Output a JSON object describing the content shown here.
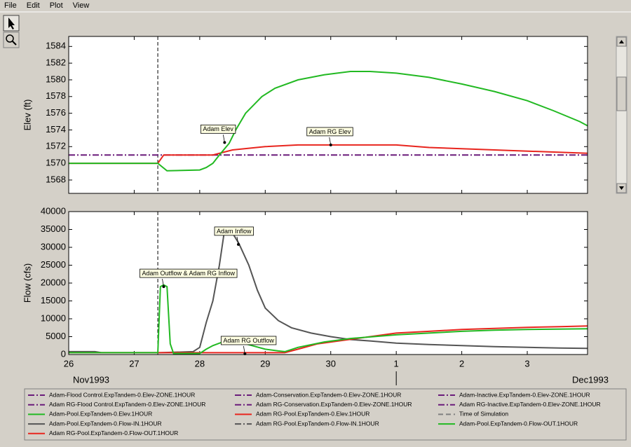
{
  "menu": [
    "File",
    "Edit",
    "Plot",
    "View"
  ],
  "chart_data": [
    {
      "type": "line",
      "ylabel": "Elev (ft)",
      "xlim": [
        0,
        7.92
      ],
      "ylim": [
        1566.4,
        1585.2
      ],
      "yticks": [
        1568,
        1570,
        1572,
        1574,
        1576,
        1578,
        1580,
        1582,
        1584
      ],
      "time_of_simulation": 1.36,
      "series": [
        {
          "color": "#6a1b7a",
          "style": "dashdot",
          "x": [
            0,
            7.92
          ],
          "values": [
            1571,
            1571
          ]
        },
        {
          "color": "#e8251e",
          "style": "solid",
          "x": [
            0,
            1.36,
            1.45,
            2.2,
            2.5,
            3.0,
            3.5,
            5.0,
            5.5,
            6.5,
            7.92
          ],
          "values": [
            1570,
            1570,
            1571,
            1571,
            1571.6,
            1572,
            1572.2,
            1572.2,
            1571.9,
            1571.6,
            1571.2
          ]
        },
        {
          "color": "#22b922",
          "style": "solid",
          "x": [
            0,
            1.36,
            1.5,
            2.0,
            2.1,
            2.2,
            2.3,
            2.45,
            2.55,
            2.7,
            2.95,
            3.15,
            3.5,
            3.9,
            4.3,
            4.6,
            5.0,
            5.5,
            6.0,
            6.5,
            7.0,
            7.4,
            7.8,
            7.92
          ],
          "values": [
            1570,
            1570,
            1569.1,
            1569.2,
            1569.5,
            1570,
            1571,
            1572.4,
            1574,
            1576,
            1578,
            1579,
            1580,
            1580.6,
            1581,
            1581,
            1580.8,
            1580.3,
            1579.5,
            1578.6,
            1577.5,
            1576.3,
            1575,
            1574.5
          ]
        }
      ],
      "annotations": [
        {
          "text": "Adam Elev",
          "x": 2.38,
          "y": 1572.5
        },
        {
          "text": "Adam RG Elev",
          "x": 4.0,
          "y": 1572.2
        }
      ]
    },
    {
      "type": "line",
      "ylabel": "Flow (cfs)",
      "xlim": [
        0,
        7.92
      ],
      "ylim": [
        0,
        40000
      ],
      "yticks": [
        0,
        5000,
        10000,
        15000,
        20000,
        25000,
        30000,
        35000,
        40000
      ],
      "xticks": [
        {
          "value": 0,
          "label": "26"
        },
        {
          "value": 1,
          "label": "27"
        },
        {
          "value": 2,
          "label": "28"
        },
        {
          "value": 3,
          "label": "29"
        },
        {
          "value": 4,
          "label": "30"
        },
        {
          "value": 5,
          "label": "1"
        },
        {
          "value": 6,
          "label": "2"
        },
        {
          "value": 7,
          "label": "3"
        }
      ],
      "month_labels": [
        "Nov1993",
        "Dec1993"
      ],
      "time_of_simulation": 1.36,
      "series": [
        {
          "color": "#555555",
          "style": "solid",
          "x": [
            0,
            0.4,
            0.5,
            1.4,
            1.9,
            2.0,
            2.1,
            2.2,
            2.3,
            2.38,
            2.42,
            2.5,
            2.6,
            2.75,
            2.88,
            3.0,
            3.2,
            3.4,
            3.7,
            4.0,
            4.3,
            4.6,
            5.0,
            5.5,
            6.0,
            6.5,
            7.0,
            7.5,
            7.92
          ],
          "values": [
            800,
            800,
            500,
            500,
            800,
            2000,
            9000,
            15000,
            25000,
            35000,
            35500,
            34000,
            31000,
            25000,
            18000,
            13000,
            9500,
            7500,
            6000,
            5000,
            4200,
            3800,
            3200,
            2800,
            2500,
            2200,
            2000,
            1800,
            1700
          ]
        },
        {
          "color": "#e8251e",
          "style": "solid",
          "x": [
            0,
            3.3,
            3.5,
            3.8,
            4.2,
            4.6,
            5.0,
            5.5,
            6.0,
            6.5,
            7.0,
            7.5,
            7.92
          ],
          "values": [
            500,
            500,
            1500,
            3000,
            4000,
            5000,
            6000,
            6500,
            7000,
            7300,
            7600,
            7800,
            8000
          ]
        },
        {
          "color": "#22b922",
          "style": "solid",
          "x": [
            0,
            1.36,
            1.4,
            1.45,
            1.5,
            1.55,
            1.6,
            2.0,
            2.1,
            2.2,
            2.35,
            2.45,
            2.6,
            2.8,
            3.0,
            3.2,
            3.3,
            3.5,
            3.9,
            4.3,
            5.0,
            5.5,
            6.0,
            6.5,
            7.0,
            7.92
          ],
          "values": [
            500,
            500,
            19000,
            19500,
            19000,
            3000,
            300,
            300,
            1500,
            2500,
            3500,
            3800,
            3500,
            2500,
            1500,
            1000,
            800,
            2000,
            3500,
            4500,
            5500,
            6000,
            6500,
            6800,
            7000,
            7200
          ]
        }
      ],
      "annotations": [
        {
          "text": "Adam Inflow",
          "x": 2.59,
          "y": 30800
        },
        {
          "text": "Adam Outflow & Adam RG Inflow",
          "x": 1.45,
          "y": 19000
        },
        {
          "text": "Adam RG Outflow",
          "x": 2.69,
          "y": 200
        }
      ]
    }
  ],
  "legend": [
    {
      "name": "Adam-Flood Control.ExpTandem-0.Elev-ZONE.1HOUR",
      "color": "#6a1b7a",
      "style": "dashdot"
    },
    {
      "name": "Adam-Conservation.ExpTandem-0.Elev-ZONE.1HOUR",
      "color": "#6a1b7a",
      "style": "dashdot"
    },
    {
      "name": "Adam-Inactive.ExpTandem-0.Elev-ZONE.1HOUR",
      "color": "#6a1b7a",
      "style": "dashdot"
    },
    {
      "name": "Adam RG-Flood Control.ExpTandem-0.Elev-ZONE.1HOUR",
      "color": "#6a1b7a",
      "style": "dashdot"
    },
    {
      "name": "Adam RG-Conservation.ExpTandem-0.Elev-ZONE.1HOUR",
      "color": "#6a1b7a",
      "style": "dashdot"
    },
    {
      "name": "Adam RG-Inactive.ExpTandem-0.Elev-ZONE.1HOUR",
      "color": "#6a1b7a",
      "style": "dashdot"
    },
    {
      "name": "Adam-Pool.ExpTandem-0.Elev.1HOUR",
      "color": "#22b922",
      "style": "solid"
    },
    {
      "name": "Adam RG-Pool.ExpTandem-0.Elev.1HOUR",
      "color": "#e8251e",
      "style": "solid"
    },
    {
      "name": "Time of Simulation",
      "color": "#808080",
      "style": "dash"
    },
    {
      "name": "Adam-Pool.ExpTandem-0.Flow-IN.1HOUR",
      "color": "#555555",
      "style": "solid"
    },
    {
      "name": "Adam RG-Pool.ExpTandem-0.Flow-IN.1HOUR",
      "color": "#555555",
      "style": "dashdot"
    },
    {
      "name": "Adam-Pool.ExpTandem-0.Flow-OUT.1HOUR",
      "color": "#22b922",
      "style": "solid"
    },
    {
      "name": "Adam RG-Pool.ExpTandem-0.Flow-OUT.1HOUR",
      "color": "#e8251e",
      "style": "solid"
    }
  ]
}
